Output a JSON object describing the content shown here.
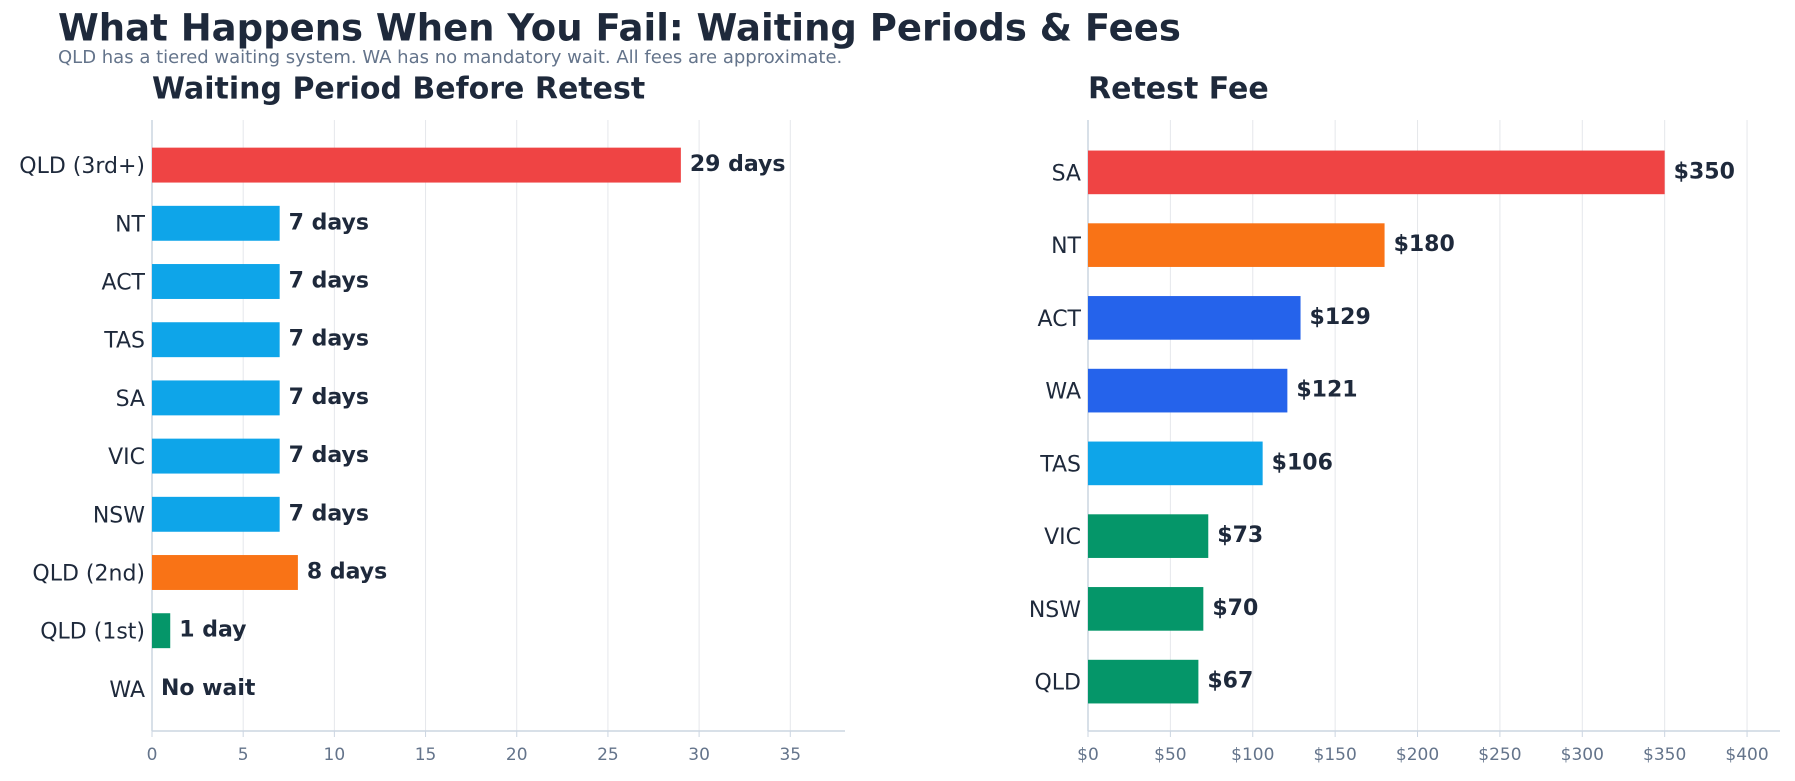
{
  "title": "What Happens When You Fail: Waiting Periods & Fees",
  "subtitle": "QLD has a tiered waiting system. WA has no mandatory wait. All fees are approximate.",
  "chart_data": [
    {
      "type": "bar",
      "orientation": "horizontal",
      "title": "Waiting Period Before Retest",
      "categories": [
        "QLD (3rd+)",
        "NT",
        "ACT",
        "TAS",
        "SA",
        "VIC",
        "NSW",
        "QLD (2nd)",
        "QLD (1st)",
        "WA"
      ],
      "values": [
        29,
        7,
        7,
        7,
        7,
        7,
        7,
        8,
        1,
        0
      ],
      "value_labels": [
        "29 days",
        "7 days",
        "7 days",
        "7 days",
        "7 days",
        "7 days",
        "7 days",
        "8 days",
        "1 day",
        "No wait"
      ],
      "colors": [
        "#ef4444",
        "#0ea5e9",
        "#0ea5e9",
        "#0ea5e9",
        "#0ea5e9",
        "#0ea5e9",
        "#0ea5e9",
        "#f97316",
        "#059669",
        "#059669"
      ],
      "xlim": [
        0,
        38
      ],
      "xticks": [
        0,
        5,
        10,
        15,
        20,
        25,
        30,
        35
      ],
      "grid": true
    },
    {
      "type": "bar",
      "orientation": "horizontal",
      "title": "Retest Fee",
      "categories": [
        "SA",
        "NT",
        "ACT",
        "WA",
        "TAS",
        "VIC",
        "NSW",
        "QLD"
      ],
      "values": [
        350,
        180,
        129,
        121,
        106,
        73,
        70,
        67
      ],
      "value_labels": [
        "$350",
        "$180",
        "$129",
        "$121",
        "$106",
        "$73",
        "$70",
        "$67"
      ],
      "colors": [
        "#ef4444",
        "#f97316",
        "#2563eb",
        "#2563eb",
        "#0ea5e9",
        "#059669",
        "#059669",
        "#059669"
      ],
      "xlim": [
        0,
        420
      ],
      "xticks": [
        {
          "value": 0,
          "label": "$0"
        },
        {
          "value": 50,
          "label": "$50"
        },
        {
          "value": 100,
          "label": "$100"
        },
        {
          "value": 150,
          "label": "$150"
        },
        {
          "value": 200,
          "label": "$200"
        },
        {
          "value": 250,
          "label": "$250"
        },
        {
          "value": 300,
          "label": "$300"
        },
        {
          "value": 350,
          "label": "$350"
        },
        {
          "value": 400,
          "label": "$400"
        }
      ],
      "grid": true
    }
  ]
}
